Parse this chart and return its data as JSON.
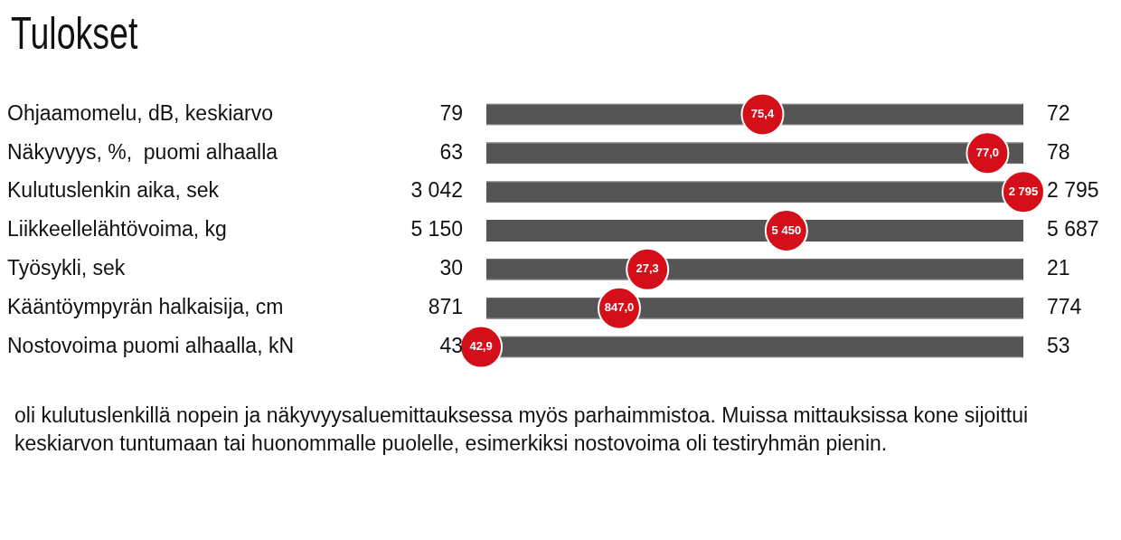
{
  "chart_data": {
    "type": "other",
    "title": "Tulokset",
    "categories": [
      "Ohjaamomelu, dB, keskiarvo",
      "Näkyvyys, %,  puomi alhaalla",
      "Kulutuslenkin aika, sek",
      "Liikkeellelähtövoima, kg",
      "Työsykli, sek",
      "Kääntöympyrän halkaisija, cm",
      "Nostovoima puomi alhaalla, kN"
    ],
    "series": [
      {
        "color": "#555555",
        "values": [
          79,
          63,
          3042,
          5150,
          30,
          871,
          43
        ],
        "value_labels": [
          "79",
          "63",
          "3 042",
          "5 150",
          "30",
          "871",
          "43"
        ]
      },
      {
        "color": "#555555",
        "values": [
          72,
          78,
          2795,
          5687,
          21,
          774,
          53
        ],
        "value_labels": [
          "72",
          "78",
          "2 795",
          "5 687",
          "21",
          "774",
          "53"
        ]
      },
      {
        "type": "scatter",
        "color": "#d40f1a",
        "values": [
          75.4,
          77.0,
          2795,
          5450,
          27.3,
          847.0,
          42.9
        ],
        "value_labels": [
          "75,4",
          "77,0",
          "2 795",
          "5 450",
          "27,3",
          "847,0",
          "42,9"
        ]
      }
    ],
    "annotations": [
      "oli kulutuslenkillä nopein ja näkyvyysaluemittauksessa myös parhaimmistoa. Muissa mittauksissa kone sijoittui keskiarvon tuntumaan tai huonommalle puolelle, esimerkiksi nostovoima oli testiryhmän pienin."
    ],
    "legend": false
  }
}
